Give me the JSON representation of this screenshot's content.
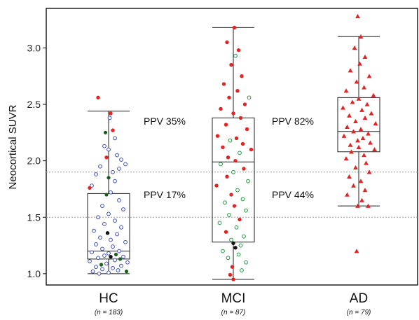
{
  "chart_data": {
    "type": "box",
    "ylabel": "Neocortical SUVR",
    "ylim": [
      0.9,
      3.35
    ],
    "yticks": [
      "1.0",
      "1.5",
      "2.0",
      "2.5",
      "3.0"
    ],
    "reference_lines": [
      1.5,
      1.9
    ],
    "grid": false,
    "categories": [
      {
        "name": "HC",
        "n_label": "n = 183",
        "box": {
          "min": 1.0,
          "q1": 1.13,
          "median": 1.2,
          "q3": 1.71,
          "max": 2.44
        },
        "points": [
          {
            "y": 2.56,
            "c": "red",
            "j": -0.5
          },
          {
            "y": 2.42,
            "c": "red",
            "j": 0.1
          },
          {
            "y": 2.38,
            "c": "blue",
            "j": 0.05
          },
          {
            "y": 2.27,
            "c": "red",
            "j": 0.2
          },
          {
            "y": 2.25,
            "c": "green",
            "j": -0.15
          },
          {
            "y": 2.2,
            "c": "blue",
            "j": 0.3
          },
          {
            "y": 2.13,
            "c": "blue",
            "j": -0.2
          },
          {
            "y": 2.1,
            "c": "blue",
            "j": 0.0
          },
          {
            "y": 2.05,
            "c": "blue",
            "j": 0.4
          },
          {
            "y": 2.03,
            "c": "red",
            "j": -0.1
          },
          {
            "y": 2.01,
            "c": "blue",
            "j": 0.6
          },
          {
            "y": 1.97,
            "c": "blue",
            "j": 0.8
          },
          {
            "y": 1.95,
            "c": "blue",
            "j": -0.4
          },
          {
            "y": 1.93,
            "c": "blue",
            "j": 0.5
          },
          {
            "y": 1.9,
            "c": "blue",
            "j": 0.2
          },
          {
            "y": 1.88,
            "c": "blue",
            "j": -0.6
          },
          {
            "y": 1.85,
            "c": "green",
            "j": 0.0
          },
          {
            "y": 1.82,
            "c": "blue",
            "j": 0.3
          },
          {
            "y": 1.78,
            "c": "blue",
            "j": -0.8
          },
          {
            "y": 1.76,
            "c": "red",
            "j": -0.9
          },
          {
            "y": 1.72,
            "c": "blue",
            "j": 0.1
          },
          {
            "y": 1.7,
            "c": "green",
            "j": -0.1
          },
          {
            "y": 1.65,
            "c": "blue",
            "j": 0.5
          },
          {
            "y": 1.6,
            "c": "blue",
            "j": -0.3
          },
          {
            "y": 1.57,
            "c": "blue",
            "j": 0.7
          },
          {
            "y": 1.53,
            "c": "blue",
            "j": 0.0
          },
          {
            "y": 1.5,
            "c": "blue",
            "j": -0.5
          },
          {
            "y": 1.47,
            "c": "blue",
            "j": 0.3
          },
          {
            "y": 1.44,
            "c": "blue",
            "j": -0.2
          },
          {
            "y": 1.41,
            "c": "blue",
            "j": 0.6
          },
          {
            "y": 1.38,
            "c": "blue",
            "j": -0.7
          },
          {
            "y": 1.36,
            "c": "black",
            "j": -0.05
          },
          {
            "y": 1.35,
            "c": "blue",
            "j": 0.4
          },
          {
            "y": 1.32,
            "c": "blue",
            "j": -0.4
          },
          {
            "y": 1.3,
            "c": "blue",
            "j": 0.1
          },
          {
            "y": 1.28,
            "c": "blue",
            "j": 0.8
          },
          {
            "y": 1.26,
            "c": "blue",
            "j": -0.6
          },
          {
            "y": 1.24,
            "c": "blue",
            "j": 0.2
          },
          {
            "y": 1.22,
            "c": "blue",
            "j": -0.3
          },
          {
            "y": 1.2,
            "c": "blue",
            "j": 0.5
          },
          {
            "y": 1.19,
            "c": "blue",
            "j": -0.8
          },
          {
            "y": 1.18,
            "c": "blue",
            "j": 0.0
          },
          {
            "y": 1.17,
            "c": "green",
            "j": 0.35
          },
          {
            "y": 1.16,
            "c": "blue",
            "j": -0.2
          },
          {
            "y": 1.15,
            "c": "black",
            "j": 0.1
          },
          {
            "y": 1.15,
            "c": "blue",
            "j": 0.7
          },
          {
            "y": 1.14,
            "c": "blue",
            "j": -0.5
          },
          {
            "y": 1.13,
            "c": "green",
            "j": 0.55
          },
          {
            "y": 1.12,
            "c": "blue",
            "j": 0.3
          },
          {
            "y": 1.11,
            "c": "blue",
            "j": -0.9
          },
          {
            "y": 1.1,
            "c": "blue",
            "j": 0.9
          },
          {
            "y": 1.09,
            "c": "blue",
            "j": -0.1
          },
          {
            "y": 1.08,
            "c": "green",
            "j": -0.35
          },
          {
            "y": 1.07,
            "c": "blue",
            "j": 0.6
          },
          {
            "y": 1.06,
            "c": "blue",
            "j": -0.6
          },
          {
            "y": 1.05,
            "c": "blue",
            "j": 0.2
          },
          {
            "y": 1.04,
            "c": "blue",
            "j": -0.3
          },
          {
            "y": 1.03,
            "c": "blue",
            "j": 0.45
          },
          {
            "y": 1.02,
            "c": "blue",
            "j": -0.75
          },
          {
            "y": 1.01,
            "c": "blue",
            "j": 0.0
          },
          {
            "y": 1.02,
            "c": "green",
            "j": 0.85
          },
          {
            "y": 1.0,
            "c": "blue",
            "j": -0.45
          }
        ]
      },
      {
        "name": "MCI",
        "n_label": "n = 87",
        "box": {
          "min": 0.95,
          "q1": 1.28,
          "median": 1.99,
          "q3": 2.38,
          "max": 3.18
        },
        "points": [
          {
            "y": 3.18,
            "c": "red",
            "j": 0.05
          },
          {
            "y": 3.05,
            "c": "red",
            "j": -0.3
          },
          {
            "y": 2.98,
            "c": "red",
            "j": 0.25
          },
          {
            "y": 2.93,
            "c": "green",
            "j": 0.1
          },
          {
            "y": 2.85,
            "c": "red",
            "j": -0.1
          },
          {
            "y": 2.75,
            "c": "red",
            "j": 0.4
          },
          {
            "y": 2.68,
            "c": "red",
            "j": -0.45
          },
          {
            "y": 2.62,
            "c": "red",
            "j": 0.2
          },
          {
            "y": 2.56,
            "c": "red",
            "j": -0.2
          },
          {
            "y": 2.56,
            "c": "green",
            "j": 0.75
          },
          {
            "y": 2.5,
            "c": "red",
            "j": 0.55
          },
          {
            "y": 2.46,
            "c": "red",
            "j": -0.6
          },
          {
            "y": 2.42,
            "c": "red",
            "j": 0.0
          },
          {
            "y": 2.38,
            "c": "red",
            "j": 0.35
          },
          {
            "y": 2.32,
            "c": "red",
            "j": -0.35
          },
          {
            "y": 2.28,
            "c": "red",
            "j": 0.65
          },
          {
            "y": 2.22,
            "c": "red",
            "j": -0.75
          },
          {
            "y": 2.2,
            "c": "red",
            "j": 0.15
          },
          {
            "y": 2.18,
            "c": "green",
            "j": -0.15
          },
          {
            "y": 2.15,
            "c": "red",
            "j": 0.45
          },
          {
            "y": 2.12,
            "c": "red",
            "j": -0.5
          },
          {
            "y": 2.1,
            "c": "red",
            "j": 0.85
          },
          {
            "y": 2.07,
            "c": "green",
            "j": 0.3
          },
          {
            "y": 2.03,
            "c": "red",
            "j": -0.25
          },
          {
            "y": 2.0,
            "c": "red",
            "j": 0.1
          },
          {
            "y": 1.97,
            "c": "green",
            "j": -0.6
          },
          {
            "y": 1.93,
            "c": "red",
            "j": 0.5
          },
          {
            "y": 1.9,
            "c": "green",
            "j": 0.0
          },
          {
            "y": 1.86,
            "c": "red",
            "j": -0.3
          },
          {
            "y": 1.82,
            "c": "green",
            "j": 0.7
          },
          {
            "y": 1.78,
            "c": "red",
            "j": -0.8
          },
          {
            "y": 1.74,
            "c": "green",
            "j": 0.2
          },
          {
            "y": 1.7,
            "c": "red",
            "j": -0.1
          },
          {
            "y": 1.66,
            "c": "green",
            "j": 0.45
          },
          {
            "y": 1.63,
            "c": "green",
            "j": -0.4
          },
          {
            "y": 1.6,
            "c": "red",
            "j": 0.05
          },
          {
            "y": 1.56,
            "c": "green",
            "j": 0.6
          },
          {
            "y": 1.52,
            "c": "green",
            "j": -0.2
          },
          {
            "y": 1.48,
            "c": "red",
            "j": 0.3
          },
          {
            "y": 1.45,
            "c": "green",
            "j": -0.65
          },
          {
            "y": 1.41,
            "c": "green",
            "j": 0.15
          },
          {
            "y": 1.37,
            "c": "red",
            "j": -0.35
          },
          {
            "y": 1.33,
            "c": "green",
            "j": 0.5
          },
          {
            "y": 1.3,
            "c": "green",
            "j": -0.1
          },
          {
            "y": 1.27,
            "c": "black",
            "j": 0.0
          },
          {
            "y": 1.25,
            "c": "green",
            "j": 0.35
          },
          {
            "y": 1.23,
            "c": "black",
            "j": 0.1
          },
          {
            "y": 1.2,
            "c": "green",
            "j": -0.5
          },
          {
            "y": 1.17,
            "c": "green",
            "j": 0.25
          },
          {
            "y": 1.14,
            "c": "green",
            "j": -0.25
          },
          {
            "y": 1.1,
            "c": "green",
            "j": 0.6
          },
          {
            "y": 1.06,
            "c": "red",
            "j": -0.05
          },
          {
            "y": 1.03,
            "c": "green",
            "j": 0.4
          },
          {
            "y": 0.99,
            "c": "red",
            "j": -0.15
          },
          {
            "y": 0.95,
            "c": "red",
            "j": 0.0
          }
        ]
      },
      {
        "name": "AD",
        "n_label": "n = 79",
        "box": {
          "min": 1.6,
          "q1": 2.08,
          "median": 2.26,
          "q3": 2.56,
          "max": 3.1
        },
        "points": [
          {
            "y": 3.28,
            "c": "red",
            "j": -0.05
          },
          {
            "y": 3.1,
            "c": "red",
            "j": 0.1
          },
          {
            "y": 3.0,
            "c": "red",
            "j": -0.2
          },
          {
            "y": 2.92,
            "c": "red",
            "j": 0.3
          },
          {
            "y": 2.86,
            "c": "red",
            "j": 0.05
          },
          {
            "y": 2.8,
            "c": "red",
            "j": -0.4
          },
          {
            "y": 2.75,
            "c": "red",
            "j": 0.5
          },
          {
            "y": 2.7,
            "c": "red",
            "j": -0.1
          },
          {
            "y": 2.65,
            "c": "red",
            "j": 0.25
          },
          {
            "y": 2.62,
            "c": "red",
            "j": -0.6
          },
          {
            "y": 2.58,
            "c": "red",
            "j": 0.7
          },
          {
            "y": 2.55,
            "c": "red",
            "j": 0.0
          },
          {
            "y": 2.52,
            "c": "red",
            "j": -0.3
          },
          {
            "y": 2.5,
            "c": "red",
            "j": 0.4
          },
          {
            "y": 2.47,
            "c": "red",
            "j": -0.75
          },
          {
            "y": 2.45,
            "c": "red",
            "j": 0.15
          },
          {
            "y": 2.42,
            "c": "red",
            "j": 0.6
          },
          {
            "y": 2.4,
            "c": "red",
            "j": -0.45
          },
          {
            "y": 2.38,
            "c": "red",
            "j": 0.3
          },
          {
            "y": 2.35,
            "c": "red",
            "j": -0.15
          },
          {
            "y": 2.33,
            "c": "red",
            "j": 0.8
          },
          {
            "y": 2.3,
            "c": "red",
            "j": -0.55
          },
          {
            "y": 2.28,
            "c": "red",
            "j": 0.1
          },
          {
            "y": 2.26,
            "c": "red",
            "j": -0.25
          },
          {
            "y": 2.24,
            "c": "red",
            "j": 0.45
          },
          {
            "y": 2.22,
            "c": "red",
            "j": -0.7
          },
          {
            "y": 2.2,
            "c": "red",
            "j": 0.2
          },
          {
            "y": 2.18,
            "c": "red",
            "j": -0.05
          },
          {
            "y": 2.16,
            "c": "red",
            "j": 0.55
          },
          {
            "y": 2.14,
            "c": "red",
            "j": -0.4
          },
          {
            "y": 2.12,
            "c": "red",
            "j": 0.0
          },
          {
            "y": 2.1,
            "c": "red",
            "j": 0.75
          },
          {
            "y": 2.08,
            "c": "red",
            "j": -0.35
          },
          {
            "y": 2.05,
            "c": "red",
            "j": 0.25
          },
          {
            "y": 2.02,
            "c": "red",
            "j": -0.6
          },
          {
            "y": 1.98,
            "c": "red",
            "j": 0.35
          },
          {
            "y": 1.94,
            "c": "red",
            "j": -0.15
          },
          {
            "y": 1.9,
            "c": "red",
            "j": 0.5
          },
          {
            "y": 1.86,
            "c": "red",
            "j": -0.45
          },
          {
            "y": 1.82,
            "c": "red",
            "j": 0.1
          },
          {
            "y": 1.78,
            "c": "red",
            "j": -0.25
          },
          {
            "y": 1.74,
            "c": "red",
            "j": 0.3
          },
          {
            "y": 1.7,
            "c": "red",
            "j": -0.55
          },
          {
            "y": 1.65,
            "c": "red",
            "j": 0.15
          },
          {
            "y": 1.6,
            "c": "red",
            "j": -0.05
          },
          {
            "y": 1.6,
            "c": "red",
            "j": 0.45
          },
          {
            "y": 1.2,
            "c": "red",
            "j": -0.1
          }
        ]
      }
    ],
    "annotations": [
      {
        "text": "PPV 35%",
        "group": 0,
        "y": 2.35
      },
      {
        "text": "PPV 17%",
        "group": 0,
        "y": 1.7
      },
      {
        "text": "PPV 82%",
        "group": 1,
        "y": 2.35
      },
      {
        "text": "PPV 44%",
        "group": 1,
        "y": 1.7
      }
    ],
    "colors": {
      "red": "#e32424",
      "blue": "#3a4fb5",
      "green": "#1f9a3a",
      "black": "#111111",
      "dark_green": "#1b5e20"
    }
  }
}
